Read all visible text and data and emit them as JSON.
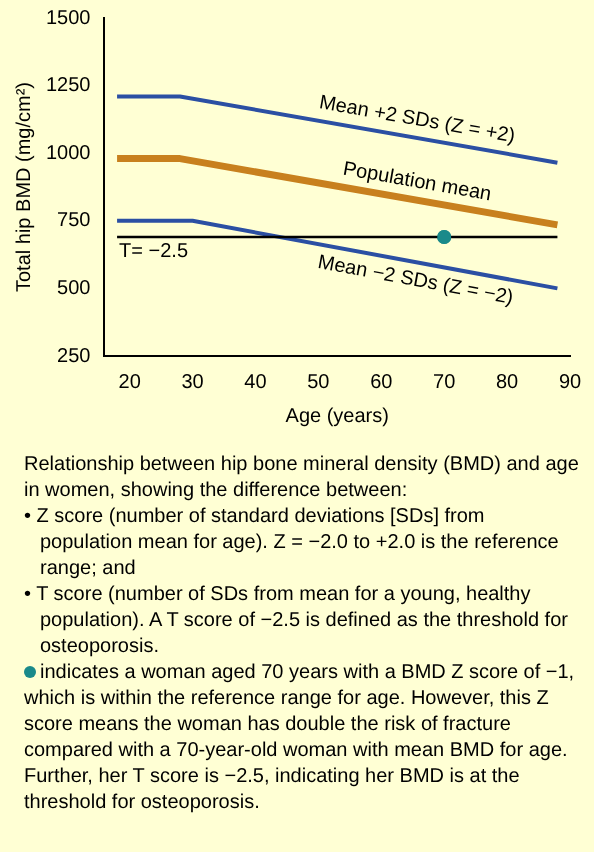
{
  "chart_data": {
    "type": "line",
    "xlabel": "Age (years)",
    "ylabel": "Total hip BMD (mg/cm²)",
    "xlim": [
      16,
      90
    ],
    "xticks": [
      20,
      30,
      40,
      50,
      60,
      70,
      80,
      90
    ],
    "ylim": [
      250,
      1500
    ],
    "yticks": [
      250,
      500,
      750,
      1000,
      1250,
      1500
    ],
    "grid": false,
    "legend": false,
    "marker": "none",
    "series": [
      {
        "color": "#2b4fa3",
        "x": [
          18,
          28,
          88
        ],
        "values": [
          1210,
          1210,
          965
        ]
      },
      {
        "color": "#c8801e",
        "x": [
          18,
          28,
          88
        ],
        "values": [
          980,
          980,
          735
        ]
      },
      {
        "color": "#2b4fa3",
        "x": [
          18,
          30,
          88
        ],
        "values": [
          750,
          750,
          500
        ]
      },
      {
        "type": "scatter",
        "marker": "circle",
        "color": "#1a8a8a",
        "x": [
          70
        ],
        "values": [
          690
        ]
      }
    ],
    "ref_lines": [
      {
        "axis": "y",
        "value": 690,
        "color": "#000000"
      }
    ],
    "annotations": [
      "Mean +2 SDs (Z = +2)",
      "Population mean",
      "Mean −2 SDs (Z = −2)",
      "T= −2.5",
      "Relationship between hip bone mineral density (BMD) and age in women, showing the difference between:",
      "• Z score (number of standard deviations [SDs] from population mean for age). Z = −2.0 to +2.0 is the reference range; and",
      "• T score (number of SDs from mean for a young, healthy population). A T score of −2.5 is defined as the threshold for osteoporosis.",
      "indicates a woman aged 70 years with a BMD Z score of −1, which is within the reference range for age. However, this Z score means the woman has double the risk of fracture compared with a 70-year-old woman with mean BMD for age. Further, her T score is −2.5, indicating her BMD is at the threshold for osteoporosis."
    ]
  }
}
